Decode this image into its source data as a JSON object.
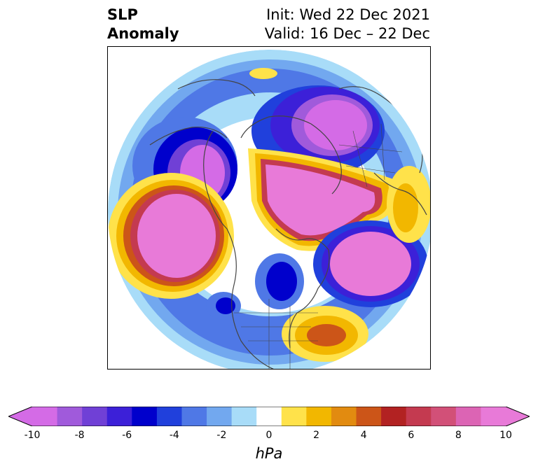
{
  "title": {
    "left_line1": "SLP",
    "left_line2": "Anomaly",
    "right_line1": "Init: Wed 22 Dec 2021",
    "right_line2": "Valid: 16 Dec – 22 Dec"
  },
  "colorbar": {
    "unit": "hPa",
    "min": -10,
    "max": 10,
    "extend": "both",
    "tick_labels": [
      "-10",
      "-8",
      "-6",
      "-4",
      "-2",
      "0",
      "2",
      "4",
      "6",
      "8",
      "10"
    ],
    "levels": [
      -10,
      -9,
      -8,
      -7,
      -6,
      -5,
      -4,
      -3,
      -2,
      -1,
      1,
      2,
      3,
      4,
      5,
      6,
      7,
      8,
      9,
      10
    ],
    "colors": [
      "#d46be6",
      "#a05adb",
      "#7040d6",
      "#3c20d8",
      "#0000cc",
      "#2040dc",
      "#4f78e6",
      "#72a8ef",
      "#a8dcf8",
      "#ffffff",
      "#ffe24a",
      "#f2b700",
      "#e28b10",
      "#cc5518",
      "#b22222",
      "#c43a50",
      "#d25078",
      "#dc64b4",
      "#e87ad8"
    ],
    "extend_low_color": "#d46be6",
    "extend_high_color": "#e87ad8"
  },
  "map": {
    "projection": "north-polar-stereographic",
    "features": [
      "coastlines",
      "country-borders",
      "state-borders"
    ],
    "anomalies": [
      {
        "name": "north-pacific-high",
        "sign": "positive",
        "peak_hPa": 10
      },
      {
        "name": "arctic-siberia-high",
        "sign": "positive",
        "peak_hPa": 10
      },
      {
        "name": "north-atlantic-high",
        "sign": "positive",
        "peak_hPa": 10
      },
      {
        "name": "western-canada-high",
        "sign": "positive",
        "peak_hPa": 10
      },
      {
        "name": "southeast-us-low",
        "sign": "negative",
        "peak_hPa": -4
      },
      {
        "name": "greenland-low",
        "sign": "negative",
        "peak_hPa": -6
      }
    ]
  }
}
